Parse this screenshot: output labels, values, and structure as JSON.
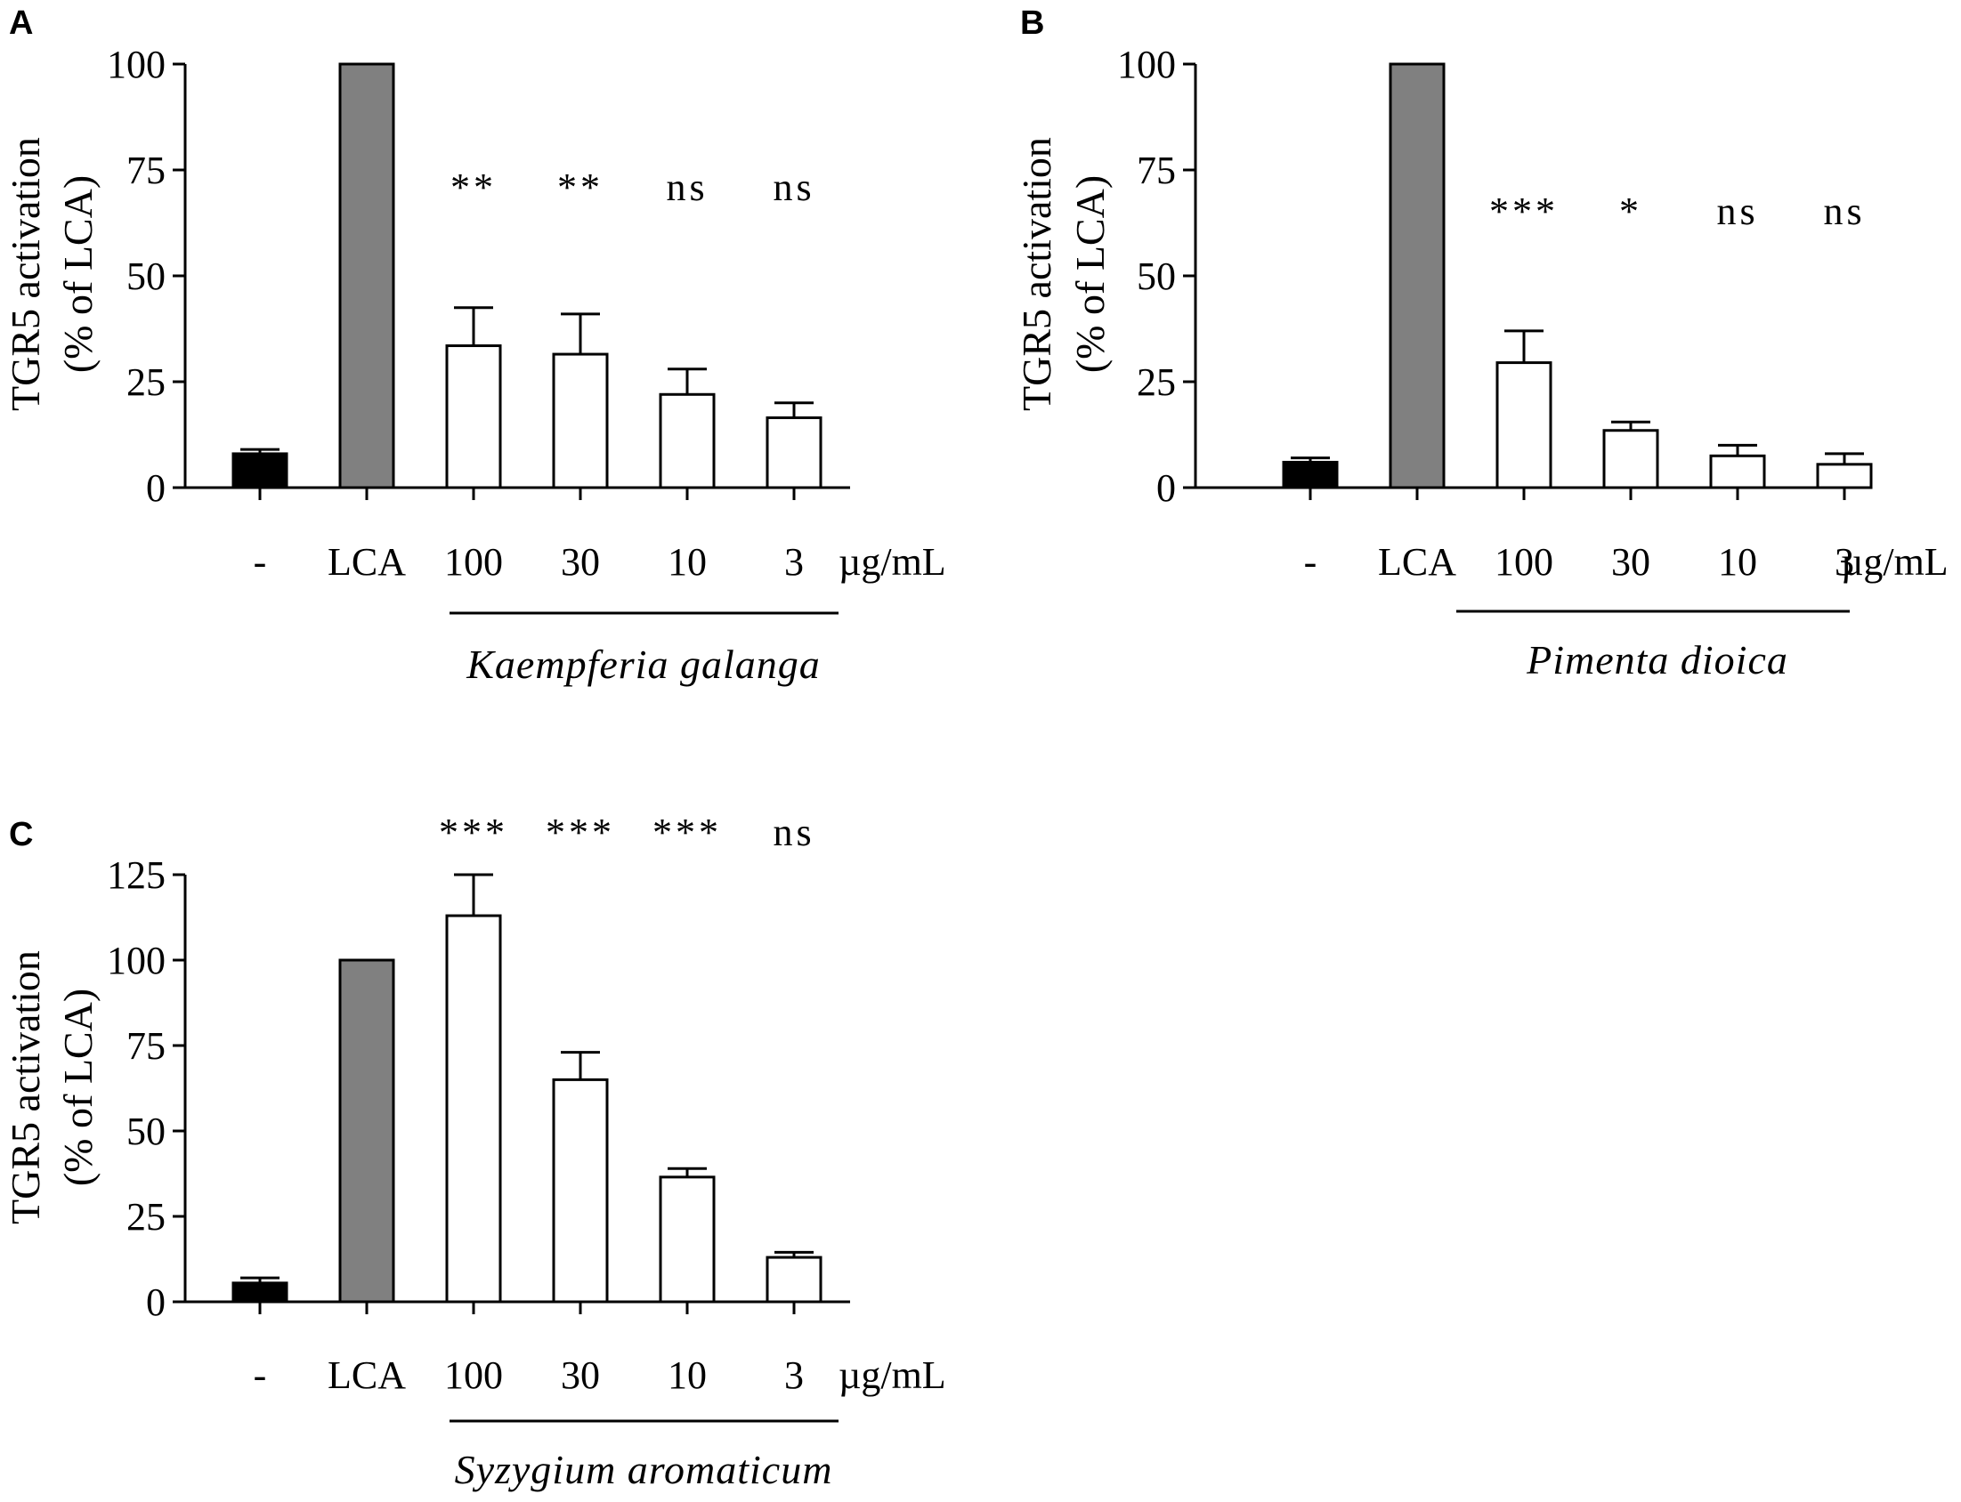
{
  "chart_data": [
    {
      "type": "bar",
      "panel_label": "A",
      "ylabel_line1": "TGR5 activation",
      "ylabel_line2": "(% of LCA)",
      "yticks": [
        "0",
        "25",
        "50",
        "75",
        "100"
      ],
      "ylim": [
        0,
        100
      ],
      "categories": [
        "-",
        "LCA",
        "100",
        "30",
        "10",
        "3"
      ],
      "unit": "µg/mL",
      "values": [
        8,
        100,
        33.5,
        31.5,
        22,
        16.5
      ],
      "errors": [
        1,
        0,
        9,
        9.5,
        6,
        3.5
      ],
      "fills": [
        "#000000",
        "#808080",
        "#ffffff",
        "#ffffff",
        "#ffffff",
        "#ffffff"
      ],
      "significance": [
        "",
        "",
        "**",
        "**",
        "ns",
        "ns"
      ],
      "group_label": "Kaempferia galanga"
    },
    {
      "type": "bar",
      "panel_label": "B",
      "ylabel_line1": "TGR5 activation",
      "ylabel_line2": "(% of LCA)",
      "yticks": [
        "0",
        "25",
        "50",
        "75",
        "100"
      ],
      "ylim": [
        0,
        100
      ],
      "categories": [
        "-",
        "LCA",
        "100",
        "30",
        "10",
        "3"
      ],
      "unit": "µg/mL",
      "values": [
        6,
        100,
        29.5,
        13.5,
        7.5,
        5.5
      ],
      "errors": [
        1,
        0,
        7.5,
        2,
        2.5,
        2.5
      ],
      "fills": [
        "#000000",
        "#808080",
        "#ffffff",
        "#ffffff",
        "#ffffff",
        "#ffffff"
      ],
      "significance": [
        "",
        "",
        "***",
        "*",
        "ns",
        "ns"
      ],
      "group_label": "Pimenta dioica"
    },
    {
      "type": "bar",
      "panel_label": "C",
      "ylabel_line1": "TGR5 activation",
      "ylabel_line2": "(% of LCA)",
      "yticks": [
        "0",
        "25",
        "50",
        "75",
        "100",
        "125"
      ],
      "ylim": [
        0,
        125
      ],
      "categories": [
        "-",
        "LCA",
        "100",
        "30",
        "10",
        "3"
      ],
      "unit": "µg/mL",
      "values": [
        5.5,
        100,
        113,
        65,
        36.5,
        13
      ],
      "errors": [
        1.5,
        0,
        12,
        8,
        2.5,
        1.5
      ],
      "fills": [
        "#000000",
        "#808080",
        "#ffffff",
        "#ffffff",
        "#ffffff",
        "#ffffff"
      ],
      "significance": [
        "",
        "",
        "***",
        "***",
        "***",
        "ns"
      ],
      "group_label": "Syzygium aromaticum"
    }
  ]
}
